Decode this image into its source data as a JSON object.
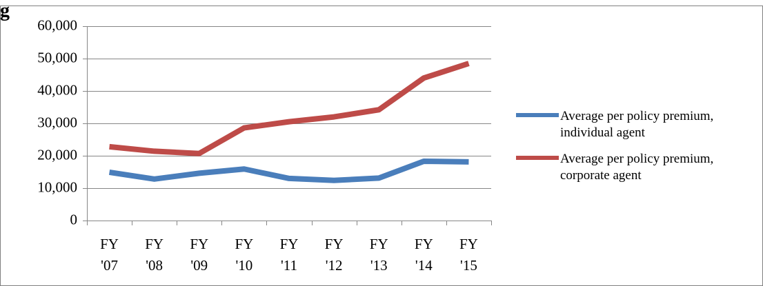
{
  "top_fragment": "g",
  "chart_data": {
    "type": "line",
    "categories": [
      [
        "FY",
        "'07"
      ],
      [
        "FY",
        "'08"
      ],
      [
        "FY",
        "'09"
      ],
      [
        "FY",
        "'10"
      ],
      [
        "FY",
        "'11"
      ],
      [
        "FY",
        "'12"
      ],
      [
        "FY",
        "'13"
      ],
      [
        "FY",
        "'14"
      ],
      [
        "FY",
        "'15"
      ]
    ],
    "ylim": [
      0,
      60000
    ],
    "yticks": [
      0,
      10000,
      20000,
      30000,
      40000,
      50000,
      60000
    ],
    "ytick_labels": [
      "0",
      "10,000",
      "20,000",
      "30,000",
      "40,000",
      "50,000",
      "60,000"
    ],
    "grid": true,
    "legend_position": "right",
    "series": [
      {
        "name_lines": [
          "Average per policy premium,",
          "individual agent"
        ],
        "color": "#4a7ebb",
        "values": [
          14900,
          12800,
          14600,
          15900,
          13000,
          12400,
          13100,
          18300,
          18100
        ]
      },
      {
        "name_lines": [
          "Average per policy premium,",
          "corporate agent"
        ],
        "color": "#be4b48",
        "values": [
          22800,
          21400,
          20700,
          28600,
          30500,
          32000,
          34200,
          44000,
          48500
        ]
      }
    ]
  }
}
